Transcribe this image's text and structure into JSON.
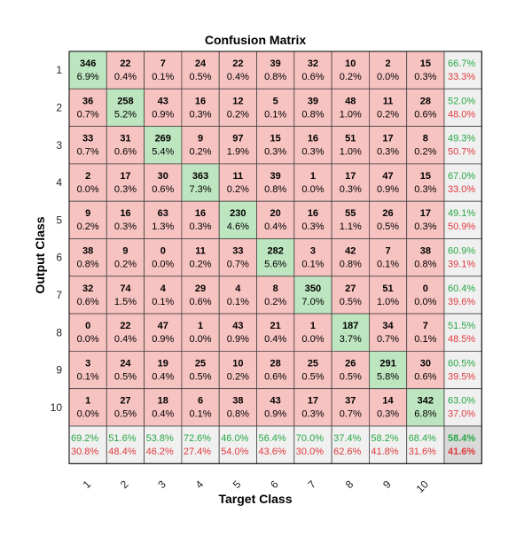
{
  "chart_data": {
    "type": "heatmap",
    "title": "Confusion Matrix",
    "xlabel": "Target Class",
    "ylabel": "Output Class",
    "classes": [
      "1",
      "2",
      "3",
      "4",
      "5",
      "6",
      "7",
      "8",
      "9",
      "10"
    ],
    "counts": [
      [
        346,
        22,
        7,
        24,
        22,
        39,
        32,
        10,
        2,
        15
      ],
      [
        36,
        258,
        43,
        16,
        12,
        5,
        39,
        48,
        11,
        28
      ],
      [
        33,
        31,
        269,
        9,
        97,
        15,
        16,
        51,
        17,
        8
      ],
      [
        2,
        17,
        30,
        363,
        11,
        39,
        1,
        17,
        47,
        15
      ],
      [
        9,
        16,
        63,
        16,
        230,
        20,
        16,
        55,
        26,
        17
      ],
      [
        38,
        9,
        0,
        11,
        33,
        282,
        3,
        42,
        7,
        38
      ],
      [
        32,
        74,
        4,
        29,
        4,
        8,
        350,
        27,
        51,
        0
      ],
      [
        0,
        22,
        47,
        1,
        43,
        21,
        1,
        187,
        34,
        7
      ],
      [
        3,
        24,
        19,
        25,
        10,
        28,
        25,
        26,
        291,
        30
      ],
      [
        1,
        27,
        18,
        6,
        38,
        43,
        17,
        37,
        14,
        342
      ]
    ],
    "percents": [
      [
        "6.9%",
        "0.4%",
        "0.1%",
        "0.5%",
        "0.4%",
        "0.8%",
        "0.6%",
        "0.2%",
        "0.0%",
        "0.3%"
      ],
      [
        "0.7%",
        "5.2%",
        "0.9%",
        "0.3%",
        "0.2%",
        "0.1%",
        "0.8%",
        "1.0%",
        "0.2%",
        "0.6%"
      ],
      [
        "0.7%",
        "0.6%",
        "5.4%",
        "0.2%",
        "1.9%",
        "0.3%",
        "0.3%",
        "1.0%",
        "0.3%",
        "0.2%"
      ],
      [
        "0.0%",
        "0.3%",
        "0.6%",
        "7.3%",
        "0.2%",
        "0.8%",
        "0.0%",
        "0.3%",
        "0.9%",
        "0.3%"
      ],
      [
        "0.2%",
        "0.3%",
        "1.3%",
        "0.3%",
        "4.6%",
        "0.4%",
        "0.3%",
        "1.1%",
        "0.5%",
        "0.3%"
      ],
      [
        "0.8%",
        "0.2%",
        "0.0%",
        "0.2%",
        "0.7%",
        "5.6%",
        "0.1%",
        "0.8%",
        "0.1%",
        "0.8%"
      ],
      [
        "0.6%",
        "1.5%",
        "0.1%",
        "0.6%",
        "0.1%",
        "0.2%",
        "7.0%",
        "0.5%",
        "1.0%",
        "0.0%"
      ],
      [
        "0.0%",
        "0.4%",
        "0.9%",
        "0.0%",
        "0.9%",
        "0.4%",
        "0.0%",
        "3.7%",
        "0.7%",
        "0.1%"
      ],
      [
        "0.1%",
        "0.5%",
        "0.4%",
        "0.5%",
        "0.2%",
        "0.6%",
        "0.5%",
        "0.5%",
        "5.8%",
        "0.6%"
      ],
      [
        "0.0%",
        "0.5%",
        "0.4%",
        "0.1%",
        "0.8%",
        "0.9%",
        "0.3%",
        "0.7%",
        "0.3%",
        "6.8%"
      ]
    ],
    "row_summary": [
      [
        "66.7%",
        "33.3%"
      ],
      [
        "52.0%",
        "48.0%"
      ],
      [
        "49.3%",
        "50.7%"
      ],
      [
        "67.0%",
        "33.0%"
      ],
      [
        "49.1%",
        "50.9%"
      ],
      [
        "60.9%",
        "39.1%"
      ],
      [
        "60.4%",
        "39.6%"
      ],
      [
        "51.5%",
        "48.5%"
      ],
      [
        "60.5%",
        "39.5%"
      ],
      [
        "63.0%",
        "37.0%"
      ]
    ],
    "col_summary": [
      [
        "69.2%",
        "30.8%"
      ],
      [
        "51.6%",
        "48.4%"
      ],
      [
        "53.8%",
        "46.2%"
      ],
      [
        "72.6%",
        "27.4%"
      ],
      [
        "46.0%",
        "54.0%"
      ],
      [
        "56.4%",
        "43.6%"
      ],
      [
        "70.0%",
        "30.0%"
      ],
      [
        "37.4%",
        "62.6%"
      ],
      [
        "58.2%",
        "41.8%"
      ],
      [
        "68.4%",
        "31.6%"
      ]
    ],
    "overall": [
      "58.4%",
      "41.6%"
    ],
    "colors": {
      "correct": "#bde5bf",
      "incorrect": "#f7c3c0",
      "summary": "#f0f0f0",
      "overall": "#d9d9d9",
      "green_text": "#28a745",
      "red_text": "#e0393e",
      "grid": "#444444"
    }
  }
}
